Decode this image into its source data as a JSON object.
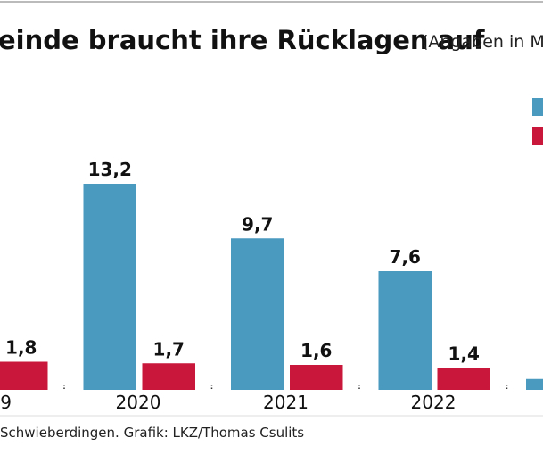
{
  "chart_data": {
    "type": "bar",
    "title": "einde braucht ihre Rücklagen auf",
    "subtitle": "(Angaben in M",
    "source": "Schwieberdingen. Grafik: LKZ/Thomas Csulits",
    "categories": [
      "9",
      "2020",
      "2021",
      "2022",
      null
    ],
    "series": [
      {
        "color": "#4a9ac0",
        "values": [
          null,
          13.2,
          9.7,
          7.6,
          0.7
        ],
        "value_labels": [
          null,
          "13,2",
          "9,7",
          "7,6",
          null
        ]
      },
      {
        "color": "#c8173a",
        "values": [
          1.8,
          1.7,
          1.6,
          1.4,
          null
        ],
        "value_labels": [
          "1,8",
          "1,7",
          "1,6",
          "1,4",
          null
        ]
      }
    ]
  }
}
